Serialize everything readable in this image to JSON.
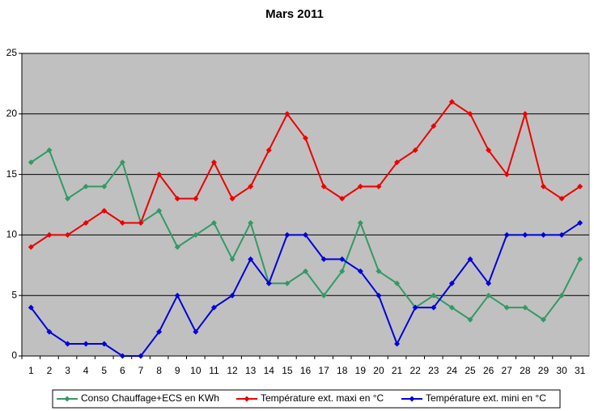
{
  "chart_data": {
    "type": "line",
    "title": "Mars 2011",
    "categories": [
      "1",
      "2",
      "3",
      "4",
      "5",
      "6",
      "7",
      "8",
      "9",
      "10",
      "11",
      "12",
      "13",
      "14",
      "15",
      "16",
      "17",
      "18",
      "19",
      "20",
      "21",
      "22",
      "23",
      "24",
      "25",
      "26",
      "27",
      "28",
      "29",
      "30",
      "31"
    ],
    "series": [
      {
        "name": "Conso Chauffage+ECS en KWh",
        "color": "#339966",
        "values": [
          16,
          17,
          13,
          14,
          14,
          16,
          11,
          12,
          9,
          10,
          11,
          8,
          11,
          6,
          6,
          7,
          5,
          7,
          11,
          7,
          6,
          4,
          5,
          4,
          3,
          5,
          4,
          4,
          3,
          5,
          8
        ]
      },
      {
        "name": "Température ext. maxi en °C",
        "color": "#ee0000",
        "values": [
          9,
          10,
          10,
          11,
          12,
          11,
          11,
          15,
          13,
          13,
          16,
          13,
          14,
          17,
          20,
          18,
          14,
          13,
          14,
          14,
          16,
          17,
          19,
          21,
          20,
          17,
          15,
          20,
          14,
          13,
          14
        ]
      },
      {
        "name": "Température ext. mini en °C",
        "color": "#0000dd",
        "values": [
          4,
          2,
          1,
          1,
          1,
          0,
          0,
          2,
          5,
          2,
          4,
          5,
          8,
          6,
          10,
          10,
          8,
          8,
          7,
          5,
          1,
          4,
          4,
          6,
          8,
          6,
          10,
          10,
          10,
          10,
          11
        ]
      }
    ],
    "ylim": [
      0,
      25
    ],
    "yticks": [
      0,
      5,
      10,
      15,
      20,
      25
    ],
    "grid": true,
    "legend": "bottom"
  }
}
